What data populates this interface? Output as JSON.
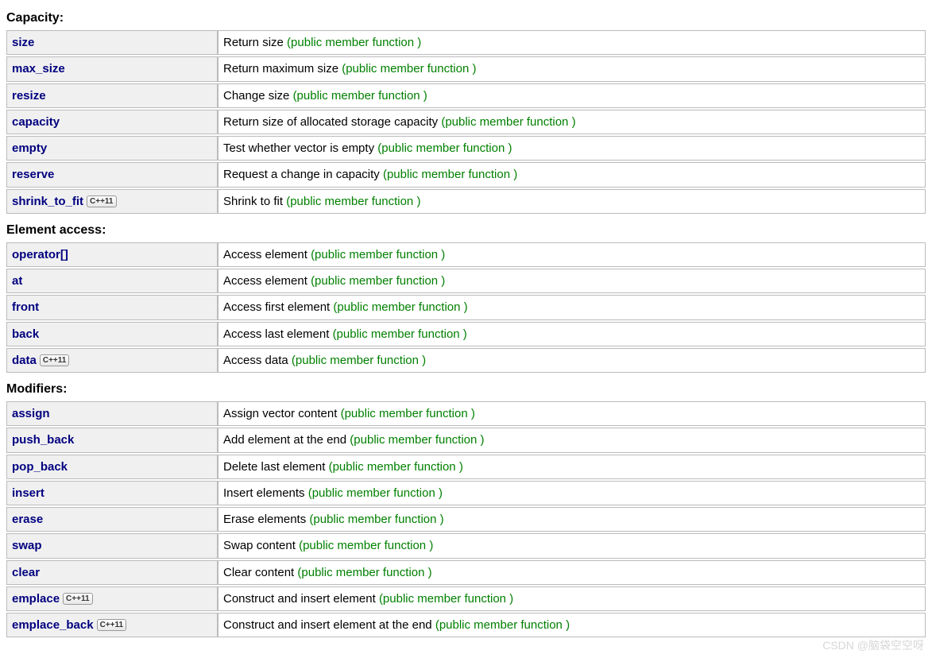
{
  "annotation_text": "(public member function )",
  "badge_text": "C++11",
  "sections": [
    {
      "heading": "Capacity:",
      "rows": [
        {
          "name": "size",
          "badge": false,
          "desc": "Return size"
        },
        {
          "name": "max_size",
          "badge": false,
          "desc": "Return maximum size"
        },
        {
          "name": "resize",
          "badge": false,
          "desc": "Change size"
        },
        {
          "name": "capacity",
          "badge": false,
          "desc": "Return size of allocated storage capacity"
        },
        {
          "name": "empty",
          "badge": false,
          "desc": "Test whether vector is empty"
        },
        {
          "name": "reserve",
          "badge": false,
          "desc": "Request a change in capacity"
        },
        {
          "name": "shrink_to_fit",
          "badge": true,
          "desc": "Shrink to fit"
        }
      ]
    },
    {
      "heading": "Element access:",
      "rows": [
        {
          "name": "operator[]",
          "badge": false,
          "desc": "Access element"
        },
        {
          "name": "at",
          "badge": false,
          "desc": "Access element"
        },
        {
          "name": "front",
          "badge": false,
          "desc": "Access first element"
        },
        {
          "name": "back",
          "badge": false,
          "desc": "Access last element"
        },
        {
          "name": "data",
          "badge": true,
          "desc": "Access data"
        }
      ]
    },
    {
      "heading": "Modifiers:",
      "rows": [
        {
          "name": "assign",
          "badge": false,
          "desc": "Assign vector content"
        },
        {
          "name": "push_back",
          "badge": false,
          "desc": "Add element at the end"
        },
        {
          "name": "pop_back",
          "badge": false,
          "desc": "Delete last element"
        },
        {
          "name": "insert",
          "badge": false,
          "desc": "Insert elements"
        },
        {
          "name": "erase",
          "badge": false,
          "desc": "Erase elements"
        },
        {
          "name": "swap",
          "badge": false,
          "desc": "Swap content"
        },
        {
          "name": "clear",
          "badge": false,
          "desc": "Clear content"
        },
        {
          "name": "emplace",
          "badge": true,
          "desc": "Construct and insert element"
        },
        {
          "name": "emplace_back",
          "badge": true,
          "desc": "Construct and insert element at the end"
        }
      ]
    }
  ],
  "watermark": "CSDN @脑袋空空呀"
}
